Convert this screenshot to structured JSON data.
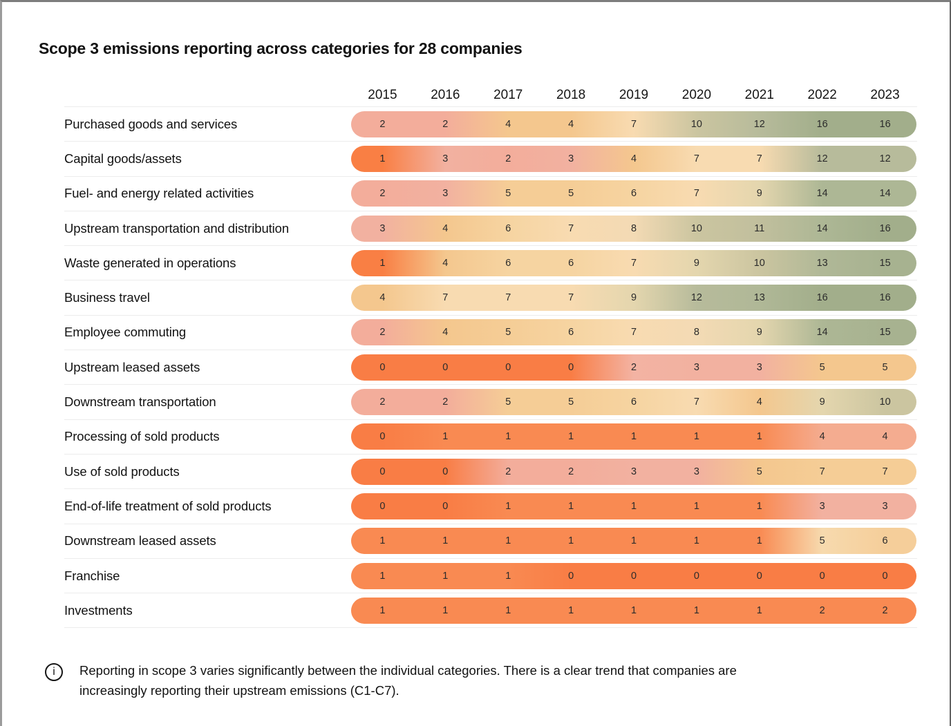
{
  "title": "Scope 3 emissions reporting across categories for 28 companies",
  "footnote": {
    "icon": "i",
    "text": "Reporting in scope 3 varies significantly between the individual categories. There is a clear trend that companies are increasingly reporting their upstream emissions (C1-C7)."
  },
  "colors": {
    "low": "#F97D45",
    "high": "#A2AE8B",
    "divider": "#ececec",
    "text": "#121212"
  },
  "chart_data": {
    "type": "heatmap",
    "title": "Scope 3 emissions reporting across categories for 28 companies",
    "companies_total": 28,
    "columns": [
      "2015",
      "2016",
      "2017",
      "2018",
      "2019",
      "2020",
      "2021",
      "2022",
      "2023"
    ],
    "value_color_scale": {
      "0": "#F97D45",
      "1": "#F98A52",
      "2": "#F3AD9B",
      "3": "#F2B1A0",
      "4": "#F4C78E",
      "5": "#F5CD96",
      "6": "#F6D4A1",
      "7": "#F8DBB1",
      "8": "#F3DAB4",
      "9": "#E4D6AE",
      "10": "#CBC5A0",
      "11": "#C1BF9D",
      "12": "#B7BB9B",
      "13": "#B0B897",
      "14": "#ADB795",
      "15": "#A7B290",
      "16": "#A2AE8B"
    },
    "rows": [
      {
        "label": "Purchased goods and services",
        "values": [
          2,
          2,
          4,
          4,
          7,
          10,
          12,
          16,
          16
        ],
        "colors": [
          "#F3AD9B",
          "#F3AD9B",
          "#F4C78E",
          "#F4C78E",
          "#F8DBB1",
          "#CBC5A0",
          "#B7BB9B",
          "#A2AE8B",
          "#A2AE8B"
        ]
      },
      {
        "label": "Capital goods/assets",
        "values": [
          1,
          3,
          2,
          3,
          4,
          7,
          7,
          12,
          12
        ],
        "colors": [
          "#F97F44",
          "#F2B1A0",
          "#F3AD9B",
          "#F2B1A0",
          "#F4C78E",
          "#F8DBB1",
          "#F8DBB1",
          "#B7BB9B",
          "#B7BB9B"
        ]
      },
      {
        "label": "Fuel- and energy related activities",
        "values": [
          2,
          3,
          5,
          5,
          6,
          7,
          9,
          14,
          14
        ],
        "colors": [
          "#F3AD9B",
          "#F2B1A0",
          "#F5CD96",
          "#F5CD96",
          "#F6D4A1",
          "#F8DBB1",
          "#E4D6AE",
          "#ADB795",
          "#ADB795"
        ]
      },
      {
        "label": "Upstream transportation and distribution",
        "values": [
          3,
          4,
          6,
          7,
          8,
          10,
          11,
          14,
          16
        ],
        "colors": [
          "#F2B1A0",
          "#F4C78E",
          "#F6D4A1",
          "#F8DBB1",
          "#F3DAB4",
          "#CBC5A0",
          "#C1BF9D",
          "#ADB795",
          "#A2AE8B"
        ]
      },
      {
        "label": "Waste generated in operations",
        "values": [
          1,
          4,
          6,
          6,
          7,
          9,
          10,
          13,
          15
        ],
        "colors": [
          "#F97F44",
          "#F4C78E",
          "#F6D4A1",
          "#F6D4A1",
          "#F8DBB1",
          "#E4D6AE",
          "#CBC5A0",
          "#B0B897",
          "#A7B290"
        ]
      },
      {
        "label": "Business travel",
        "values": [
          4,
          7,
          7,
          7,
          9,
          12,
          13,
          16,
          16
        ],
        "colors": [
          "#F4C78E",
          "#F8DBB1",
          "#F8DBB1",
          "#F8DBB1",
          "#E4D6AE",
          "#B7BB9B",
          "#B0B897",
          "#A2AE8B",
          "#A2AE8B"
        ]
      },
      {
        "label": "Employee commuting",
        "values": [
          2,
          4,
          5,
          6,
          7,
          8,
          9,
          14,
          15
        ],
        "colors": [
          "#F3AD9B",
          "#F4C78E",
          "#F5CD96",
          "#F6D4A1",
          "#F8DBB1",
          "#F3DAB4",
          "#E4D6AE",
          "#ADB795",
          "#A7B290"
        ]
      },
      {
        "label": "Upstream leased assets",
        "values": [
          0,
          0,
          0,
          0,
          2,
          3,
          3,
          5,
          5
        ],
        "colors": [
          "#F97D45",
          "#F97D45",
          "#F97D45",
          "#F97D45",
          "#F3B3A3",
          "#F2B1A0",
          "#F2B1A0",
          "#F4C78E",
          "#F4C78E"
        ]
      },
      {
        "label": "Downstream transportation",
        "values": [
          2,
          2,
          5,
          5,
          6,
          7,
          4,
          9,
          10
        ],
        "colors": [
          "#F3AD9B",
          "#F3AD9B",
          "#F5CD96",
          "#F5CD96",
          "#F6D4A1",
          "#F8DBB1",
          "#F4C78E",
          "#E4D6AE",
          "#CBC5A0"
        ]
      },
      {
        "label": "Processing of sold products",
        "values": [
          0,
          1,
          1,
          1,
          1,
          1,
          1,
          4,
          4
        ],
        "colors": [
          "#F97D45",
          "#F98A52",
          "#F98A52",
          "#F98A52",
          "#F98A52",
          "#F98A52",
          "#F98A52",
          "#F4AC90",
          "#F4AC90"
        ]
      },
      {
        "label": "Use of sold products",
        "values": [
          0,
          0,
          2,
          2,
          3,
          3,
          5,
          7,
          7
        ],
        "colors": [
          "#F97D45",
          "#F97D45",
          "#F3AD9B",
          "#F3AD9B",
          "#F2B1A0",
          "#F2B1A0",
          "#F4C78E",
          "#F5CD96",
          "#F5CD96"
        ]
      },
      {
        "label": "End-of-life treatment of sold products",
        "values": [
          0,
          0,
          1,
          1,
          1,
          1,
          1,
          3,
          3
        ],
        "colors": [
          "#F97D45",
          "#F97D45",
          "#F98A52",
          "#F98A52",
          "#F98A52",
          "#F98A52",
          "#F98A52",
          "#F2B1A0",
          "#F2B1A0"
        ]
      },
      {
        "label": "Downstream leased assets",
        "values": [
          1,
          1,
          1,
          1,
          1,
          1,
          1,
          5,
          6
        ],
        "colors": [
          "#F98A52",
          "#F98A52",
          "#F98A52",
          "#F98A52",
          "#F98A52",
          "#F98A52",
          "#F98A52",
          "#F7DAAE",
          "#F5CE9A"
        ]
      },
      {
        "label": "Franchise",
        "values": [
          1,
          1,
          1,
          0,
          0,
          0,
          0,
          0,
          0
        ],
        "colors": [
          "#F98A52",
          "#F98A52",
          "#F98A52",
          "#F97D45",
          "#F97D45",
          "#F97D45",
          "#F97D45",
          "#F97D45",
          "#F97D45"
        ]
      },
      {
        "label": "Investments",
        "values": [
          1,
          1,
          1,
          1,
          1,
          1,
          1,
          2,
          2
        ],
        "colors": [
          "#F98A52",
          "#F98A52",
          "#F98A52",
          "#F98A52",
          "#F98A52",
          "#F98A52",
          "#F98A52",
          "#F98A52",
          "#F98A52"
        ]
      }
    ]
  }
}
